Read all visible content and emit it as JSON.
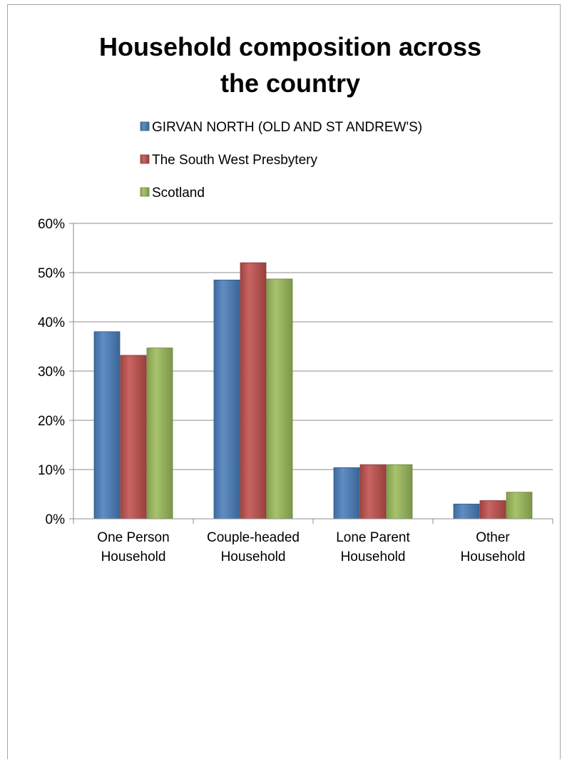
{
  "chart_data": {
    "type": "bar",
    "title_lines": [
      "Household composition across",
      "the country"
    ],
    "categories": [
      [
        "One Person",
        "Household"
      ],
      [
        "Couple-headed",
        "Household"
      ],
      [
        "Lone Parent",
        "Household"
      ],
      [
        "Other",
        "Household"
      ]
    ],
    "series": [
      {
        "name": "GIRVAN NORTH (OLD AND ST ANDREW'S)",
        "color": "#4a7ebb",
        "values": [
          0.38,
          0.485,
          0.104,
          0.03
        ]
      },
      {
        "name": "The South West Presbytery",
        "color": "#c0504d",
        "values": [
          0.332,
          0.52,
          0.11,
          0.037
        ]
      },
      {
        "name": "Scotland",
        "color": "#9bbb59",
        "values": [
          0.347,
          0.487,
          0.11,
          0.054
        ]
      }
    ],
    "y_ticks": [
      "0%",
      "10%",
      "20%",
      "30%",
      "40%",
      "50%",
      "60%"
    ],
    "ylim": [
      0,
      0.6
    ],
    "grid": true,
    "legend_position": "top"
  }
}
